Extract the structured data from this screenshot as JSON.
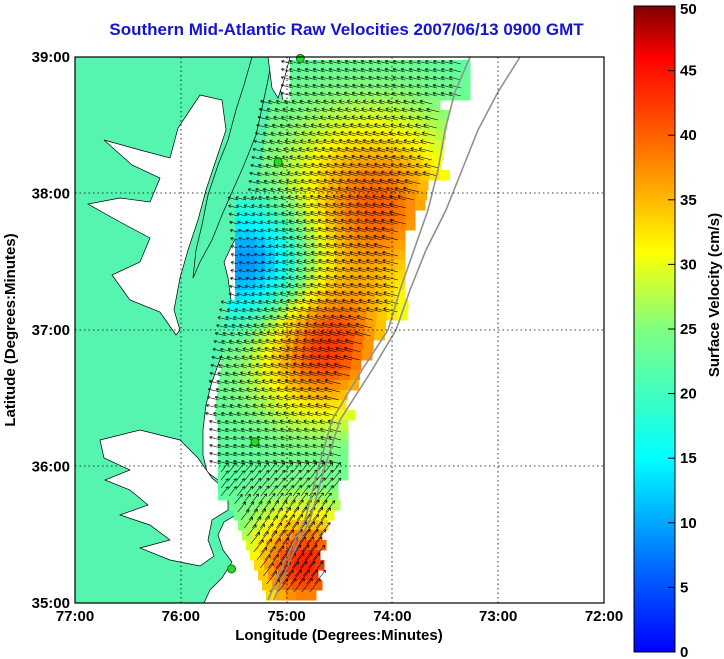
{
  "title": "Southern Mid-Atlantic Raw Velocities 2007/06/13 0900 GMT",
  "map": {
    "xlabel": "Longitude (Degrees:Minutes)",
    "ylabel": "Latitude (Degrees:Minutes)",
    "lon_ticks": [
      "77:00",
      "76:00",
      "75:00",
      "74:00",
      "73:00",
      "72:00"
    ],
    "lat_ticks": [
      "39:00",
      "38:00",
      "37:00",
      "36:00",
      "35:00"
    ],
    "lon_range": [
      -77,
      -72
    ],
    "lat_range": [
      35,
      39
    ],
    "land_color": "#55f5b0",
    "grid": true
  },
  "colorbar": {
    "label": "Surface Velocity (cm/s)",
    "ticks": [
      "50",
      "45",
      "40",
      "35",
      "30",
      "25",
      "20",
      "15",
      "10",
      "5",
      "0"
    ],
    "range": [
      0,
      50
    ],
    "colormap": "jet"
  },
  "markers": {
    "color": "#22dd22",
    "stations": [
      {
        "lon": -74.87,
        "lat": 38.99
      },
      {
        "lon": -75.08,
        "lat": 38.23
      },
      {
        "lon": -75.3,
        "lat": 36.18
      },
      {
        "lon": -75.52,
        "lat": 35.25
      }
    ]
  }
}
